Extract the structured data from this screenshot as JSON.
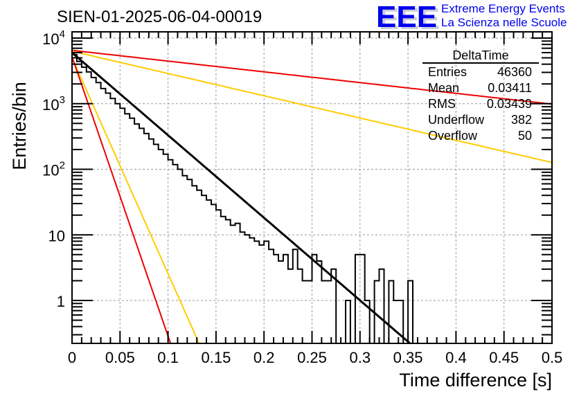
{
  "header": {
    "title": "SIEN-01-2025-06-04-00019",
    "logo": {
      "mark": "EEE",
      "line1": "Extreme Energy Events",
      "line2": "La Scienza nelle Scuole",
      "color": "#0000ee"
    }
  },
  "stats_box": {
    "name": "DeltaTime",
    "rows": [
      {
        "label": "Entries",
        "value": "46360"
      },
      {
        "label": "Mean",
        "value": "0.03411"
      },
      {
        "label": "RMS",
        "value": "0.03439"
      },
      {
        "label": "Underflow",
        "value": "382"
      },
      {
        "label": "Overflow",
        "value": "50"
      }
    ]
  },
  "chart_data": {
    "type": "line",
    "title": "SIEN-01-2025-06-04-00019",
    "xlabel": "Time difference [s]",
    "ylabel": "Entries/bin",
    "xlim": [
      0,
      0.5
    ],
    "ylim": [
      0.22,
      11000
    ],
    "yscale": "log",
    "grid": true,
    "x_ticks": [
      "0",
      "0.05",
      "0.1",
      "0.15",
      "0.2",
      "0.25",
      "0.3",
      "0.35",
      "0.4",
      "0.45",
      "0.5"
    ],
    "x_tick_values": [
      0,
      0.05,
      0.1,
      0.15,
      0.2,
      0.25,
      0.3,
      0.35,
      0.4,
      0.45,
      0.5
    ],
    "y_ticks": [
      {
        "value": 10000,
        "base": "10",
        "exp": "4"
      },
      {
        "value": 1000,
        "base": "10",
        "exp": "3"
      },
      {
        "value": 100,
        "base": "10",
        "exp": "2"
      },
      {
        "value": 10,
        "base": "10",
        "exp": ""
      },
      {
        "value": 1,
        "base": "1",
        "exp": ""
      }
    ],
    "histogram": {
      "name": "DeltaTime",
      "bin_width": 0.005,
      "x_start": 0,
      "counts": [
        5600,
        4400,
        3600,
        3050,
        2500,
        2100,
        1700,
        1450,
        1200,
        1000,
        850,
        700,
        600,
        490,
        420,
        350,
        290,
        240,
        200,
        170,
        140,
        118,
        100,
        80,
        70,
        56,
        48,
        40,
        34,
        29,
        24,
        19,
        17,
        14,
        15,
        11,
        10,
        9,
        8,
        7,
        8,
        6,
        5,
        4,
        5,
        3,
        6,
        3,
        2,
        2,
        5,
        4,
        2,
        2,
        3,
        0,
        0,
        1,
        0,
        5,
        5,
        1,
        0,
        2,
        3,
        0,
        2,
        1,
        1,
        0,
        2,
        0,
        0,
        0,
        0,
        0,
        0,
        0,
        0,
        0,
        0,
        0,
        0,
        0,
        0,
        0,
        0,
        0,
        0,
        0,
        0,
        0,
        0,
        0,
        0,
        0,
        0,
        0,
        0,
        0
      ]
    },
    "series": [
      {
        "name": "exponential fit",
        "color": "#000000",
        "amplitude": 6000,
        "tau": 0.0345,
        "x_range": [
          0,
          0.353
        ]
      },
      {
        "name": "red slow",
        "color": "#ee0000",
        "amplitude": 6500,
        "tau": 0.265,
        "x_range": [
          0,
          0.5
        ]
      },
      {
        "name": "yellow slow",
        "color": "#ffcc00",
        "amplitude": 6300,
        "tau": 0.128,
        "x_range": [
          0,
          0.5
        ]
      },
      {
        "name": "yellow fast",
        "color": "#ffcc00",
        "amplitude": 5000,
        "tau": 0.0132,
        "x_range": [
          0,
          0.5
        ]
      },
      {
        "name": "red fast",
        "color": "#ee0000",
        "amplitude": 5200,
        "tau": 0.0102,
        "x_range": [
          0,
          0.5
        ]
      }
    ]
  }
}
